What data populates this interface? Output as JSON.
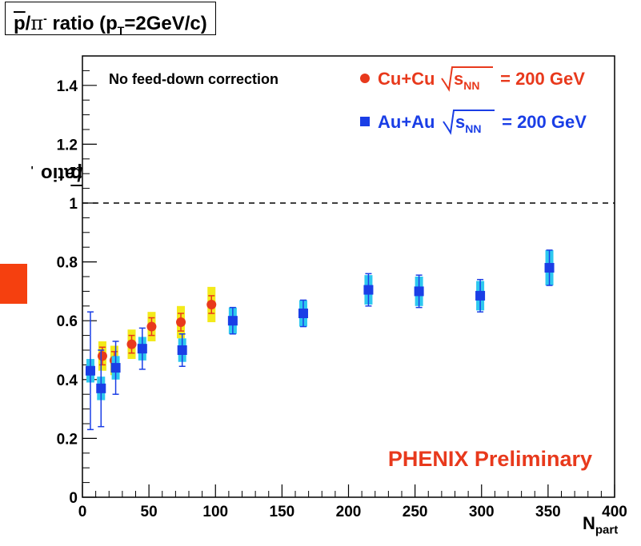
{
  "chart_data": {
    "type": "scatter",
    "title": "p/π⁻ ratio (pT=2GeV/c)",
    "title_parts": {
      "p": "p",
      "slash": "/",
      "pi": "π",
      "minus": "-",
      "ratio": " ratio (p",
      "T": "T",
      "rest": "=2GeV/c)"
    },
    "ylabel_parts": {
      "p": "p",
      "slash": "/",
      "pi": "π",
      "minus": "-",
      "ratio": " ratio"
    },
    "xlabel_parts": {
      "N": "N",
      "sub": "part"
    },
    "xlim": [
      0,
      400
    ],
    "ylim": [
      0,
      1.5
    ],
    "x_ticks": [
      "0",
      "50",
      "100",
      "150",
      "200",
      "250",
      "300",
      "350",
      "400"
    ],
    "y_ticks": [
      "0",
      "0.2",
      "0.4",
      "0.6",
      "0.8",
      "1",
      "1.2",
      "1.4"
    ],
    "reference_line": 1.0,
    "annotation": "No feed-down correction",
    "watermark": "PHENIX Preliminary",
    "legend_placement": "top-right",
    "legend": [
      {
        "system": "Cu+Cu",
        "root": "s",
        "sub": "NN",
        "energy": "= 200 GeV",
        "color": "#e8391c"
      },
      {
        "system": "Au+Au",
        "root": "s",
        "sub": "NN",
        "energy": "= 200 GeV",
        "color": "#1a3ee6"
      }
    ],
    "series": [
      {
        "marker": "circle",
        "color": "#e8391c",
        "sys_color": "#f3ea1a",
        "points": [
          {
            "x": 15,
            "y": 0.48,
            "stat": 0.03,
            "sys": 0.05
          },
          {
            "x": 24,
            "y": 0.465,
            "stat": 0.03,
            "sys": 0.05
          },
          {
            "x": 37,
            "y": 0.52,
            "stat": 0.03,
            "sys": 0.05
          },
          {
            "x": 52,
            "y": 0.58,
            "stat": 0.03,
            "sys": 0.05
          },
          {
            "x": 74,
            "y": 0.595,
            "stat": 0.03,
            "sys": 0.055
          },
          {
            "x": 97,
            "y": 0.655,
            "stat": 0.03,
            "sys": 0.06
          }
        ]
      },
      {
        "marker": "square",
        "color": "#1a3ee6",
        "sys_color": "#2dc8ef",
        "points": [
          {
            "x": 6,
            "y": 0.43,
            "stat": 0.2,
            "sys": 0.04
          },
          {
            "x": 14,
            "y": 0.37,
            "stat": 0.13,
            "sys": 0.04
          },
          {
            "x": 25,
            "y": 0.44,
            "stat": 0.09,
            "sys": 0.04
          },
          {
            "x": 45,
            "y": 0.505,
            "stat": 0.07,
            "sys": 0.04
          },
          {
            "x": 75,
            "y": 0.5,
            "stat": 0.055,
            "sys": 0.04
          },
          {
            "x": 113,
            "y": 0.6,
            "stat": 0.045,
            "sys": 0.045
          },
          {
            "x": 166,
            "y": 0.625,
            "stat": 0.045,
            "sys": 0.045
          },
          {
            "x": 215,
            "y": 0.705,
            "stat": 0.055,
            "sys": 0.05
          },
          {
            "x": 253,
            "y": 0.7,
            "stat": 0.055,
            "sys": 0.05
          },
          {
            "x": 299,
            "y": 0.685,
            "stat": 0.055,
            "sys": 0.05
          },
          {
            "x": 351,
            "y": 0.78,
            "stat": 0.06,
            "sys": 0.06
          }
        ]
      }
    ]
  },
  "decor": {
    "side_box_color": "#f5400f"
  }
}
